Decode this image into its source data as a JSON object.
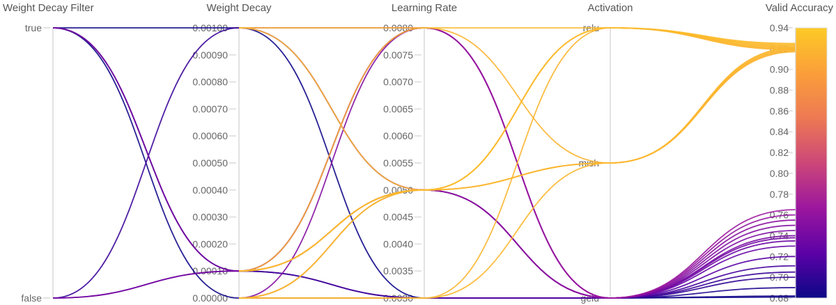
{
  "chart_data": {
    "type": "parallel-coordinates",
    "axes": [
      {
        "name": "Weight Decay Filter",
        "kind": "category",
        "ticks": [
          "true",
          "false"
        ]
      },
      {
        "name": "Weight Decay",
        "kind": "number",
        "range": [
          0,
          0.001
        ],
        "ticks": [
          "0.00100",
          "0.00090",
          "0.00080",
          "0.00070",
          "0.00060",
          "0.00050",
          "0.00040",
          "0.00030",
          "0.00020",
          "0.00010",
          "0.00000"
        ]
      },
      {
        "name": "Learning Rate",
        "kind": "number",
        "range": [
          0.003,
          0.008
        ],
        "ticks": [
          "0.0080",
          "0.0075",
          "0.0070",
          "0.0065",
          "0.0060",
          "0.0055",
          "0.0050",
          "0.0045",
          "0.0040",
          "0.0035",
          "0.0030"
        ]
      },
      {
        "name": "Activation",
        "kind": "category",
        "ticks": [
          "relu",
          "mish",
          "gelu"
        ]
      },
      {
        "name": "Valid Accuracy",
        "kind": "number",
        "range": [
          0.68,
          0.94
        ],
        "ticks": [
          "0.94",
          "0.92",
          "0.90",
          "0.88",
          "0.86",
          "0.84",
          "0.82",
          "0.80",
          "0.78",
          "0.76",
          "0.74",
          "0.72",
          "0.70",
          "0.68"
        ]
      }
    ],
    "colorscale": [
      "#0d0887",
      "#5c01a6",
      "#9c179e",
      "#cc4778",
      "#ed7953",
      "#fb9f3a",
      "#fdca26"
    ],
    "runs": [
      [
        "true",
        0.001,
        0.003,
        "gelu",
        0.681
      ],
      [
        "true",
        0.0001,
        0.003,
        "gelu",
        0.69
      ],
      [
        "true",
        0.0001,
        0.005,
        "gelu",
        0.7
      ],
      [
        "true",
        0.0001,
        0.008,
        "gelu",
        0.745
      ],
      [
        "true",
        0.0,
        0.003,
        "gelu",
        0.682
      ],
      [
        "false",
        0.001,
        0.005,
        "gelu",
        0.705
      ],
      [
        "false",
        0.0001,
        0.008,
        "gelu",
        0.74
      ],
      [
        "false",
        0.0001,
        0.005,
        "gelu",
        0.73
      ],
      [
        null,
        0.001,
        0.008,
        "gelu",
        0.765
      ],
      [
        null,
        0.001,
        0.005,
        "gelu",
        0.76
      ],
      [
        null,
        0.0001,
        0.008,
        "gelu",
        0.755
      ],
      [
        null,
        0.0001,
        0.003,
        "gelu",
        0.711
      ],
      [
        null,
        0.0,
        0.008,
        "gelu",
        0.75
      ],
      [
        null,
        0.0,
        0.005,
        "gelu",
        0.735
      ],
      [
        null,
        0.0,
        0.003,
        "gelu",
        0.72
      ],
      [
        null,
        0.0001,
        0.005,
        "gelu",
        0.738
      ],
      [
        null,
        0.001,
        0.005,
        "relu",
        0.925
      ],
      [
        null,
        0.001,
        0.008,
        "relu",
        0.923
      ],
      [
        null,
        0.0001,
        0.005,
        "relu",
        0.921
      ],
      [
        null,
        0.0001,
        0.005,
        "relu",
        0.92
      ],
      [
        null,
        0.0,
        0.005,
        "relu",
        0.924
      ],
      [
        null,
        0.0,
        0.003,
        "relu",
        0.919
      ],
      [
        null,
        0.0001,
        0.005,
        "relu",
        0.922
      ],
      [
        null,
        0.0001,
        0.008,
        "mish",
        0.918
      ],
      [
        null,
        0.0001,
        0.005,
        "mish",
        0.92
      ],
      [
        null,
        0.0,
        0.005,
        "mish",
        0.917
      ],
      [
        null,
        0.0,
        0.003,
        "mish",
        0.921
      ],
      [
        null,
        0.0001,
        0.005,
        "mish",
        0.919
      ]
    ]
  }
}
